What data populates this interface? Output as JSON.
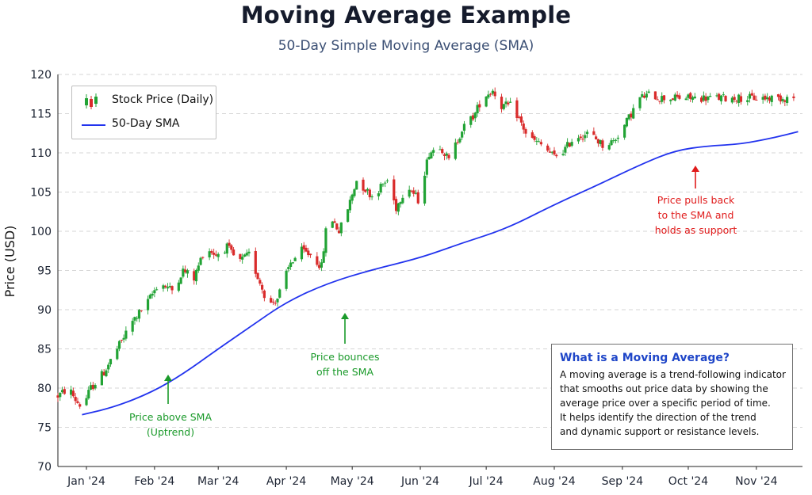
{
  "title": "Moving Average Example",
  "subtitle": "50-Day Simple Moving Average (SMA)",
  "chart_data": {
    "type": "line",
    "title": "Moving Average Example",
    "subtitle": "50-Day Simple Moving Average (SMA)",
    "xlabel": "",
    "ylabel": "Price (USD)",
    "ylim": [
      70,
      120
    ],
    "y_ticks": [
      70,
      75,
      80,
      85,
      90,
      95,
      100,
      105,
      110,
      115,
      120
    ],
    "x_ticks": [
      "Jan '24",
      "Feb '24",
      "Mar '24",
      "Apr '24",
      "May '24",
      "Jun '24",
      "Jul '24",
      "Aug '24",
      "Sep '24",
      "Oct '24",
      "Nov '24"
    ],
    "grid": "horizontal dashed",
    "legend_position": "top-left",
    "series": [
      {
        "name": "Stock Price (Daily)",
        "style": "candlestick",
        "up_color": "#22a335",
        "down_color": "#d92b2b",
        "approx_close_path": {
          "dates": [
            "2023-12-19",
            "2023-12-24",
            "2023-12-27",
            "2023-12-30",
            "2024-01-03",
            "2024-01-09",
            "2024-01-15",
            "2024-01-22",
            "2024-01-29",
            "2024-02-03",
            "2024-02-09",
            "2024-02-14",
            "2024-02-19",
            "2024-02-24",
            "2024-02-29",
            "2024-03-05",
            "2024-03-10",
            "2024-03-15",
            "2024-03-20",
            "2024-03-24",
            "2024-03-28",
            "2024-04-03",
            "2024-04-08",
            "2024-04-12",
            "2024-04-17",
            "2024-04-19",
            "2024-04-22",
            "2024-04-25",
            "2024-04-28",
            "2024-05-03",
            "2024-05-10",
            "2024-05-17",
            "2024-05-21",
            "2024-05-26",
            "2024-05-31",
            "2024-06-05",
            "2024-06-10",
            "2024-06-14",
            "2024-06-20",
            "2024-06-26",
            "2024-06-29",
            "2024-07-04",
            "2024-07-08",
            "2024-07-13",
            "2024-07-20",
            "2024-07-26",
            "2024-08-01",
            "2024-08-06",
            "2024-08-10",
            "2024-08-17",
            "2024-08-23",
            "2024-08-28",
            "2024-09-02",
            "2024-09-05",
            "2024-09-09",
            "2024-09-14",
            "2024-09-18",
            "2024-09-23",
            "2024-09-27",
            "2024-10-02",
            "2024-10-08",
            "2024-10-14",
            "2024-10-20",
            "2024-10-26",
            "2024-11-01",
            "2024-11-07",
            "2024-11-12",
            "2024-11-15"
          ],
          "prices": [
            79,
            80,
            78.5,
            77.5,
            80,
            82,
            85,
            88.5,
            91,
            93.5,
            92.5,
            95,
            94,
            98,
            97,
            98,
            96,
            97,
            93.5,
            90.5,
            91.5,
            96,
            97.5,
            97,
            95.5,
            100,
            101.5,
            100,
            102,
            106.5,
            104.5,
            106.5,
            103,
            106,
            104,
            110,
            111,
            109,
            113,
            115,
            117,
            118,
            116,
            116,
            112,
            111,
            109.5,
            110.5,
            112,
            112.5,
            111,
            111.5,
            113.5,
            115,
            117,
            117.5,
            117,
            117,
            117,
            117,
            117,
            117,
            117,
            117,
            117,
            117,
            117,
            117
          ]
        }
      },
      {
        "name": "50-Day SMA",
        "color": "#2233ee",
        "dates": [
          "2023-12-30",
          "2024-01-14",
          "2024-01-31",
          "2024-02-14",
          "2024-03-01",
          "2024-03-15",
          "2024-04-01",
          "2024-04-20",
          "2024-05-10",
          "2024-06-01",
          "2024-06-20",
          "2024-07-10",
          "2024-08-01",
          "2024-08-20",
          "2024-09-10",
          "2024-09-25",
          "2024-10-10",
          "2024-10-25",
          "2024-11-10",
          "2024-11-20"
        ],
        "values": [
          76.6,
          77.6,
          79.5,
          81.8,
          85,
          87.7,
          91,
          93.4,
          95.1,
          96.6,
          98.5,
          100.3,
          103.4,
          105.8,
          108.6,
          110.3,
          110.9,
          111.1,
          112,
          112.7
        ]
      }
    ],
    "annotations": [
      {
        "text": [
          "Price above SMA",
          "(Uptrend)"
        ],
        "date": "2024-02-05",
        "value": 80.5,
        "color": "#1a9a2a",
        "arrow": "up"
      },
      {
        "text": [
          "Price bounces",
          "off the SMA"
        ],
        "date": "2024-04-26",
        "value": 90,
        "color": "#1a9a2a",
        "arrow": "up"
      },
      {
        "text": [
          "Price pulls back",
          "to the SMA and",
          "holds as support"
        ],
        "date": "2024-10-02",
        "value": 108.5,
        "color": "#e01b1b",
        "arrow": "up"
      }
    ],
    "info_box": {
      "title": "What is a Moving Average?",
      "lines": [
        "A moving average is a trend-following indicator",
        "that smooths out price data by showing the",
        "average price over a specific period of time.",
        "It helps identify the direction of the trend",
        "and dynamic support or resistance levels."
      ]
    }
  },
  "legend": {
    "candle_label": "Stock Price (Daily)",
    "sma_label": "50-Day SMA"
  },
  "annotations_text": {
    "a1_line1": "Price above SMA",
    "a1_line2": "(Uptrend)",
    "a2_line1": "Price bounces",
    "a2_line2": "off the SMA",
    "a3_line1": "Price pulls back",
    "a3_line2": "to the SMA and",
    "a3_line3": "holds as support"
  }
}
